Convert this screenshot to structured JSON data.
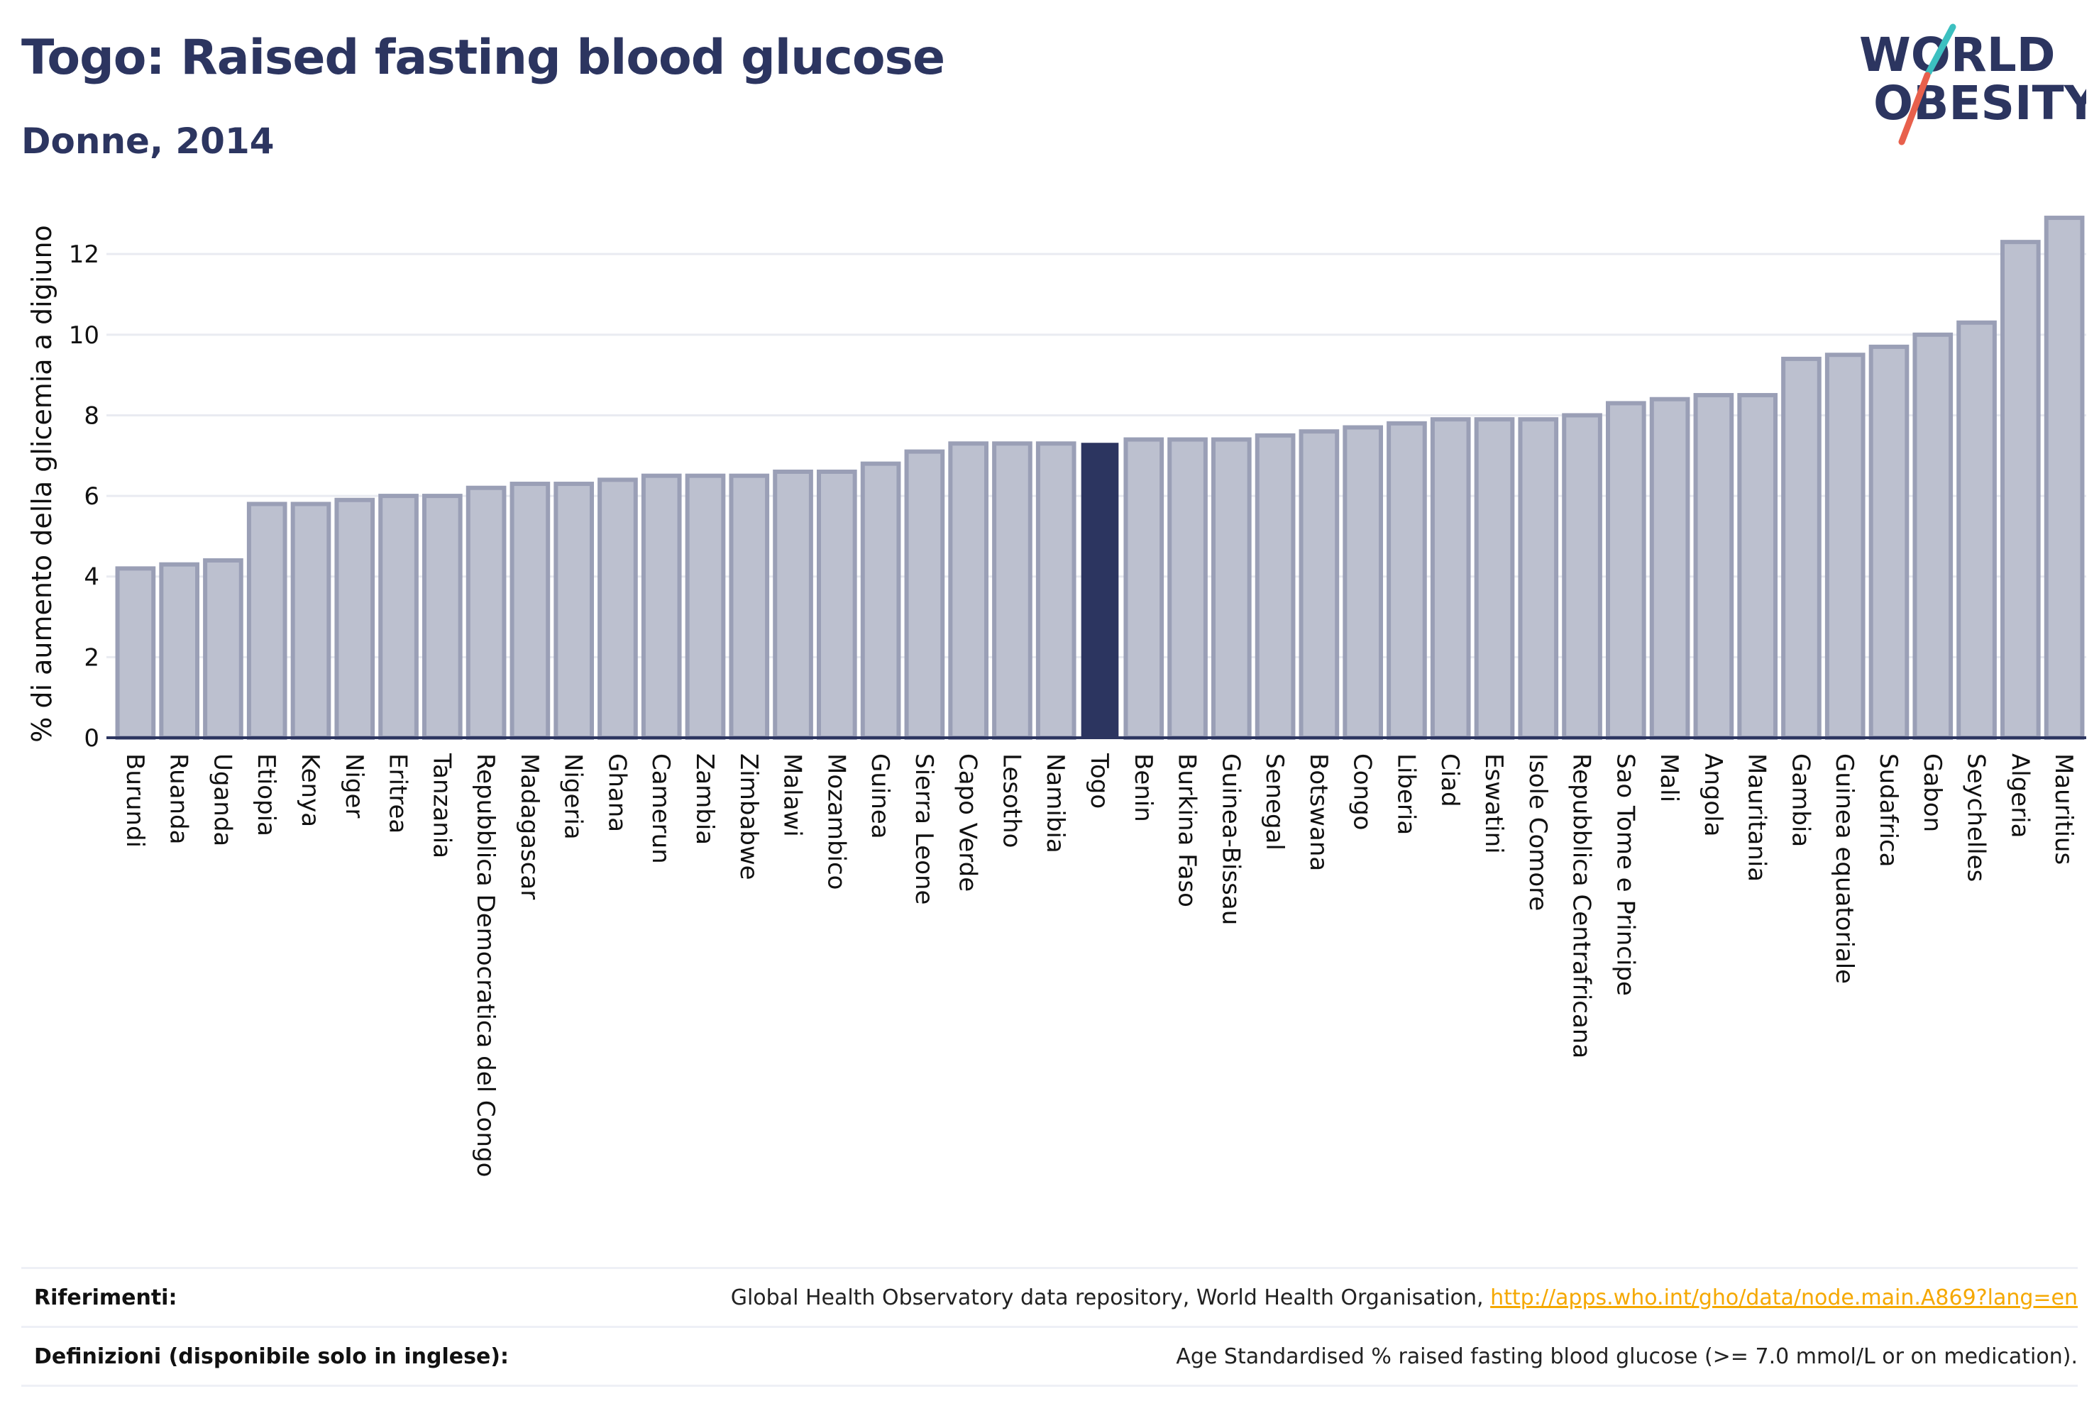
{
  "header": {
    "title": "Togo: Raised fasting blood glucose",
    "subtitle": "Donne, 2014"
  },
  "logo": {
    "line1": "WORLD",
    "line2": "OBESITY",
    "colors": {
      "text": "#2c3560",
      "slash_teal": "#3cc0c0",
      "slash_red": "#e8604c"
    }
  },
  "chart_data": {
    "type": "bar",
    "title": "Togo: Raised fasting blood glucose",
    "subtitle": "Donne, 2014",
    "xlabel": "",
    "ylabel": "% di aumento della glicemia a digiuno",
    "ylim": [
      0,
      13.2
    ],
    "yticks": [
      0,
      2,
      4,
      6,
      8,
      10,
      12
    ],
    "grid": true,
    "highlight": "Togo",
    "colors": {
      "bar": "#bcc0cf",
      "bar_border": "#9a9fb6",
      "highlight": "#2c3560",
      "grid": "#e9ebf1",
      "axis": "#2c3560"
    },
    "categories": [
      "Burundi",
      "Ruanda",
      "Uganda",
      "Etiopia",
      "Kenya",
      "Niger",
      "Eritrea",
      "Tanzania",
      "Repubblica Democratica del Congo",
      "Madagascar",
      "Nigeria",
      "Ghana",
      "Camerun",
      "Zambia",
      "Zimbabwe",
      "Malawi",
      "Mozambico",
      "Guinea",
      "Sierra Leone",
      "Capo Verde",
      "Lesotho",
      "Namibia",
      "Togo",
      "Benin",
      "Burkina Faso",
      "Guinea-Bissau",
      "Senegal",
      "Botswana",
      "Congo",
      "Liberia",
      "Ciad",
      "Eswatini",
      "Isole Comore",
      "Repubblica Centrafricana",
      "Sao Tome e Principe",
      "Mali",
      "Angola",
      "Mauritania",
      "Gambia",
      "Guinea equatoriale",
      "Sudafrica",
      "Gabon",
      "Seychelles",
      "Algeria",
      "Mauritius"
    ],
    "values": [
      4.2,
      4.3,
      4.4,
      5.8,
      5.8,
      5.9,
      6.0,
      6.0,
      6.2,
      6.3,
      6.3,
      6.4,
      6.5,
      6.5,
      6.5,
      6.6,
      6.6,
      6.8,
      7.1,
      7.3,
      7.3,
      7.3,
      7.3,
      7.4,
      7.4,
      7.4,
      7.5,
      7.6,
      7.7,
      7.8,
      7.9,
      7.9,
      7.9,
      8.0,
      8.3,
      8.4,
      8.5,
      8.5,
      9.4,
      9.5,
      9.7,
      10.0,
      10.3,
      12.3,
      12.9
    ]
  },
  "footer": {
    "references_label": "Riferimenti:",
    "references_text": "Global Health Observatory data repository, World Health Organisation,",
    "references_link": "http://apps.who.int/gho/data/node.main.A869?lang=en",
    "definitions_label": "Definizioni (disponibile solo in inglese):",
    "definitions_text": "Age Standardised % raised fasting blood glucose (>= 7.0 mmol/L or on medication)."
  }
}
